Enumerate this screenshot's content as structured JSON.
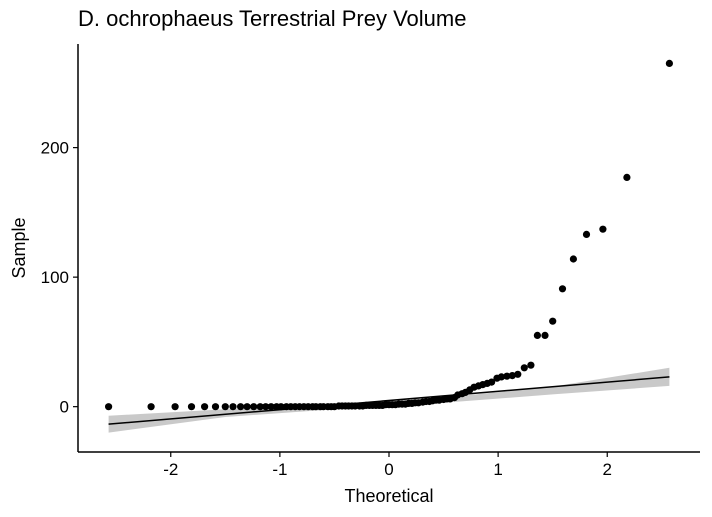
{
  "chart_data": {
    "type": "scatter",
    "title": "D. ochrophaeus Terrestrial Prey Volume",
    "xlabel": "Theoretical",
    "ylabel": "Sample",
    "xlim": [
      -2.85,
      2.85
    ],
    "ylim": [
      -35,
      280
    ],
    "x_ticks": [
      -2,
      -1,
      0,
      1,
      2
    ],
    "y_ticks": [
      0,
      100,
      200
    ],
    "grid": false,
    "legend": "none",
    "colors": {
      "points": "#000000",
      "line": "#000000",
      "band": "#bfbfbf"
    },
    "reference_line": {
      "x": [
        -2.57,
        2.57
      ],
      "y": [
        -13.5,
        23
      ]
    },
    "confidence_band": {
      "x": [
        -2.57,
        -1.5,
        -0.5,
        0.5,
        1.5,
        2.57
      ],
      "lower": [
        -20,
        -8,
        -2,
        3,
        9.5,
        16
      ],
      "upper": [
        -7,
        -2,
        1.5,
        7,
        15.5,
        30
      ]
    },
    "series": [
      {
        "x": [
          -2.57,
          -2.18,
          -1.96,
          -1.81,
          -1.69,
          -1.59,
          -1.5,
          -1.43,
          -1.36,
          -1.3,
          -1.24,
          -1.18,
          -1.13,
          -1.08,
          -1.03,
          -0.99,
          -0.94,
          -0.9,
          -0.86,
          -0.82,
          -0.78,
          -0.74,
          -0.7,
          -0.67,
          -0.63,
          -0.6,
          -0.56,
          -0.53,
          -0.5,
          -0.46,
          -0.43,
          -0.4,
          -0.37,
          -0.34,
          -0.31,
          -0.27,
          -0.24,
          -0.21,
          -0.18,
          -0.15,
          -0.12,
          -0.09,
          -0.06,
          -0.03,
          0.0,
          0.03,
          0.06,
          0.09,
          0.12,
          0.15,
          0.18,
          0.21,
          0.24,
          0.27,
          0.31,
          0.34,
          0.37,
          0.4,
          0.43,
          0.46,
          0.5,
          0.53,
          0.56,
          0.6,
          0.63,
          0.67,
          0.7,
          0.74,
          0.78,
          0.82,
          0.86,
          0.9,
          0.94,
          0.99,
          1.03,
          1.08,
          1.13,
          1.18,
          1.24,
          1.3,
          1.36,
          1.43,
          1.5,
          1.59,
          1.69,
          1.81,
          1.96,
          2.18,
          2.57
        ],
        "y": [
          0,
          0,
          0,
          0,
          0,
          0,
          0,
          0,
          0,
          0,
          0,
          0,
          0,
          0,
          0,
          0,
          0,
          0,
          0,
          0,
          0,
          0,
          0,
          0,
          0,
          0,
          0,
          0,
          0,
          0.5,
          0.5,
          0.5,
          0.5,
          0.5,
          0.5,
          0.5,
          0.5,
          1,
          1,
          1,
          1,
          1,
          1,
          1.5,
          1.5,
          1.5,
          1.5,
          2,
          2,
          2,
          2.5,
          2.5,
          3,
          3,
          3.5,
          4,
          4,
          4.5,
          5,
          5,
          5.5,
          6,
          6,
          7,
          9,
          10,
          11,
          13,
          15,
          16,
          17,
          18,
          19,
          22,
          23,
          23.5,
          24,
          25,
          30,
          32,
          55,
          55,
          66,
          91,
          114,
          133,
          137,
          177,
          265
        ]
      }
    ]
  }
}
